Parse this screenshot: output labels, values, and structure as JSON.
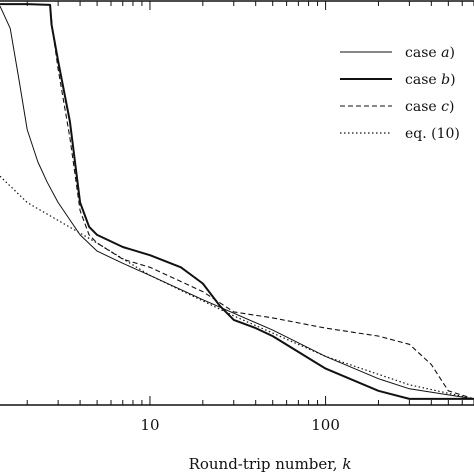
{
  "chart_data": {
    "type": "line",
    "xscale": "log",
    "xlim": [
      1.4,
      700
    ],
    "ylim": [
      0,
      1
    ],
    "x_ticks": [
      10,
      100
    ],
    "x_tick_labels": [
      "10",
      "100"
    ],
    "xlabel": "Round-trip number, ",
    "xlabel_var": "k",
    "legend_position": "top-right",
    "grid": false,
    "series": [
      {
        "name_prefix": "case ",
        "name_var": "a",
        "name_suffix": ")",
        "style": "thin-solid",
        "x": [
          1.4,
          1.6,
          1.8,
          2.0,
          2.3,
          2.6,
          3.0,
          4.0,
          5.0,
          7.0,
          10,
          20,
          50,
          100,
          200,
          300,
          700
        ],
        "y": [
          0.985,
          0.93,
          0.8,
          0.68,
          0.6,
          0.55,
          0.5,
          0.42,
          0.38,
          0.35,
          0.32,
          0.26,
          0.185,
          0.12,
          0.065,
          0.04,
          0.015
        ]
      },
      {
        "name_prefix": "case ",
        "name_var": "b",
        "name_suffix": ")",
        "style": "thick-solid",
        "x": [
          1.4,
          2.0,
          2.7,
          2.75,
          3.0,
          3.5,
          4.0,
          4.5,
          5.0,
          7.0,
          10,
          15,
          20,
          25,
          30,
          40,
          50,
          100,
          200,
          300,
          500,
          700
        ],
        "y": [
          0.99,
          0.99,
          0.988,
          0.94,
          0.85,
          0.7,
          0.5,
          0.44,
          0.42,
          0.39,
          0.37,
          0.34,
          0.3,
          0.245,
          0.21,
          0.19,
          0.17,
          0.09,
          0.035,
          0.015,
          0.015,
          0.015
        ]
      },
      {
        "name_prefix": "case ",
        "name_var": "c",
        "name_suffix": ")",
        "style": "dashed",
        "x": [
          1.4,
          2.0,
          2.7,
          2.8,
          3.0,
          3.5,
          4.0,
          4.5,
          5.0,
          7.0,
          10,
          20,
          30,
          50,
          100,
          200,
          300,
          400,
          500,
          700
        ],
        "y": [
          0.99,
          0.99,
          0.988,
          0.92,
          0.83,
          0.66,
          0.48,
          0.42,
          0.4,
          0.36,
          0.34,
          0.28,
          0.23,
          0.215,
          0.19,
          0.17,
          0.15,
          0.1,
          0.035,
          0.015
        ]
      },
      {
        "name_prefix": "eq. (10)",
        "name_var": "",
        "name_suffix": "",
        "style": "dotted",
        "x": [
          1.4,
          2.0,
          5.0,
          10,
          30,
          100,
          300,
          700
        ],
        "y": [
          0.565,
          0.5,
          0.4,
          0.32,
          0.22,
          0.12,
          0.05,
          0.015
        ]
      }
    ]
  }
}
